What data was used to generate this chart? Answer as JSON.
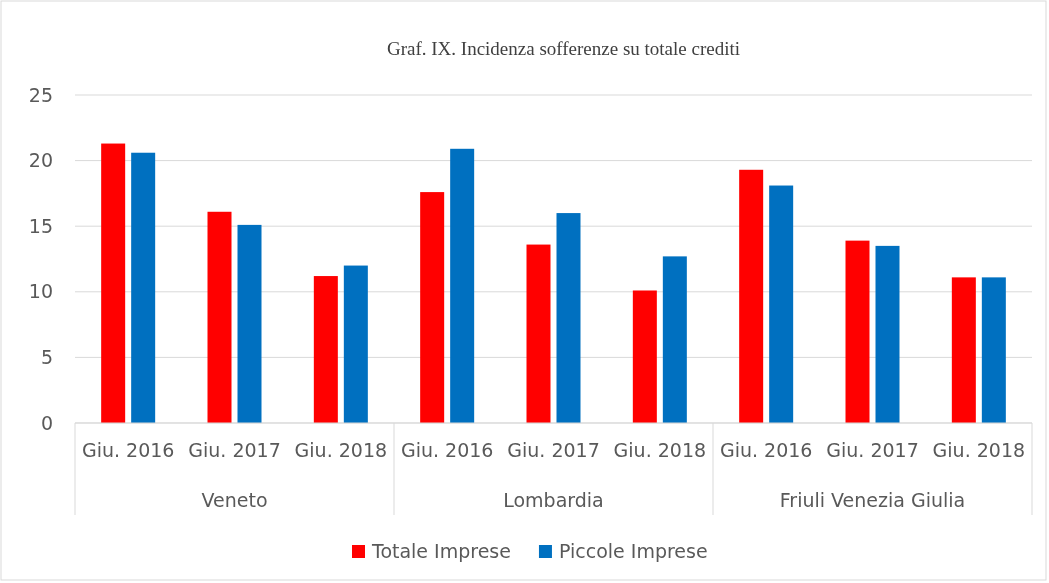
{
  "chart_data": {
    "type": "bar",
    "title": "Graf. IX. Incidenza sofferenze su totale crediti",
    "categories": [
      "Giu. 2016",
      "Giu. 2017",
      "Giu. 2018",
      "Giu. 2016",
      "Giu. 2017",
      "Giu. 2018",
      "Giu. 2016",
      "Giu. 2017",
      "Giu. 2018"
    ],
    "annotations": [
      "Veneto",
      "Lombardia",
      "Friuli Venezia Giulia"
    ],
    "series": [
      {
        "name": "Totale Imprese",
        "color": "#ff0000",
        "values": [
          21.3,
          16.1,
          11.2,
          17.6,
          13.6,
          10.1,
          19.3,
          13.9,
          11.1
        ]
      },
      {
        "name": "Piccole Imprese",
        "color": "#0070c0",
        "values": [
          20.6,
          15.1,
          12.0,
          20.9,
          16.0,
          12.7,
          18.1,
          13.5,
          11.1
        ]
      }
    ],
    "ylim": [
      0,
      25
    ],
    "yticks": [
      0,
      5,
      10,
      15,
      20,
      25
    ],
    "grid": "y",
    "legend": "bottom"
  }
}
